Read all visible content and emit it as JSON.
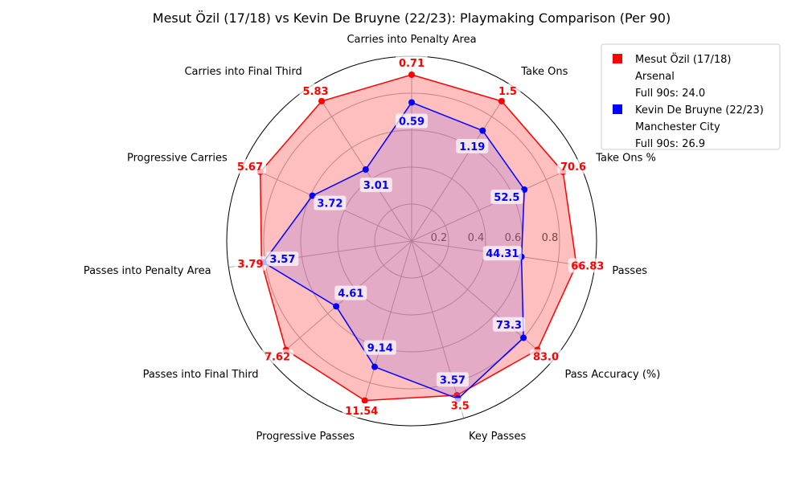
{
  "chart_data": {
    "type": "radar",
    "title": "Mesut Özil (17/18) vs Kevin De Bruyne (22/23): Playmaking Comparison (Per 90)",
    "axes": [
      "Carries into Penalty Area",
      "Take Ons",
      "Take Ons %",
      "Passes",
      "Pass Accuracy (%)",
      "Key Passes",
      "Progressive Passes",
      "Passes into Final Third",
      "Passes into Penalty Area",
      "Progressive Carries",
      "Carries into Final Third"
    ],
    "radial_ticks": [
      "0.2",
      "0.4",
      "0.6",
      "0.8"
    ],
    "rlim": [
      0,
      1
    ],
    "grid": true,
    "legend_position": "top-right",
    "series": [
      {
        "name": "Mesut Özil (17/18)",
        "color": "#ff0000",
        "fill": "#ff0000",
        "values": [
          0.71,
          1.5,
          70.6,
          66.83,
          83.0,
          3.5,
          11.54,
          7.62,
          3.79,
          5.67,
          5.83
        ],
        "labels": [
          "0.71",
          "1.5",
          "70.6",
          "66.83",
          "83.0",
          "3.5",
          "11.54",
          "7.62",
          "3.79",
          "5.67",
          "5.83"
        ],
        "normalized": [
          0.9,
          0.9,
          0.9,
          0.9,
          0.9,
          0.87,
          0.9,
          0.9,
          0.82,
          0.9,
          0.9
        ]
      },
      {
        "name": "Kevin De Bruyne (22/23)",
        "color": "#0000ff",
        "fill": "#9370db",
        "values": [
          0.59,
          1.19,
          52.5,
          44.31,
          73.3,
          3.57,
          9.14,
          4.61,
          3.57,
          3.72,
          3.01
        ],
        "labels": [
          "0.59",
          "1.19",
          "52.5",
          "44.31",
          "73.3",
          "3.57",
          "9.14",
          "4.61",
          "3.57",
          "3.72",
          "3.01"
        ],
        "normalized": [
          0.75,
          0.71,
          0.67,
          0.6,
          0.8,
          0.89,
          0.71,
          0.54,
          0.81,
          0.59,
          0.46
        ]
      }
    ],
    "legend": [
      {
        "text": "Mesut Özil (17/18)",
        "marker": true,
        "color": "#ff0000"
      },
      {
        "text": "Arsenal",
        "marker": false
      },
      {
        "text": "Full 90s: 24.0",
        "marker": false
      },
      {
        "text": "Kevin De Bruyne (22/23)",
        "marker": true,
        "color": "#0000ff"
      },
      {
        "text": "Manchester City",
        "marker": false
      },
      {
        "text": "Full 90s: 26.9",
        "marker": false
      }
    ]
  }
}
